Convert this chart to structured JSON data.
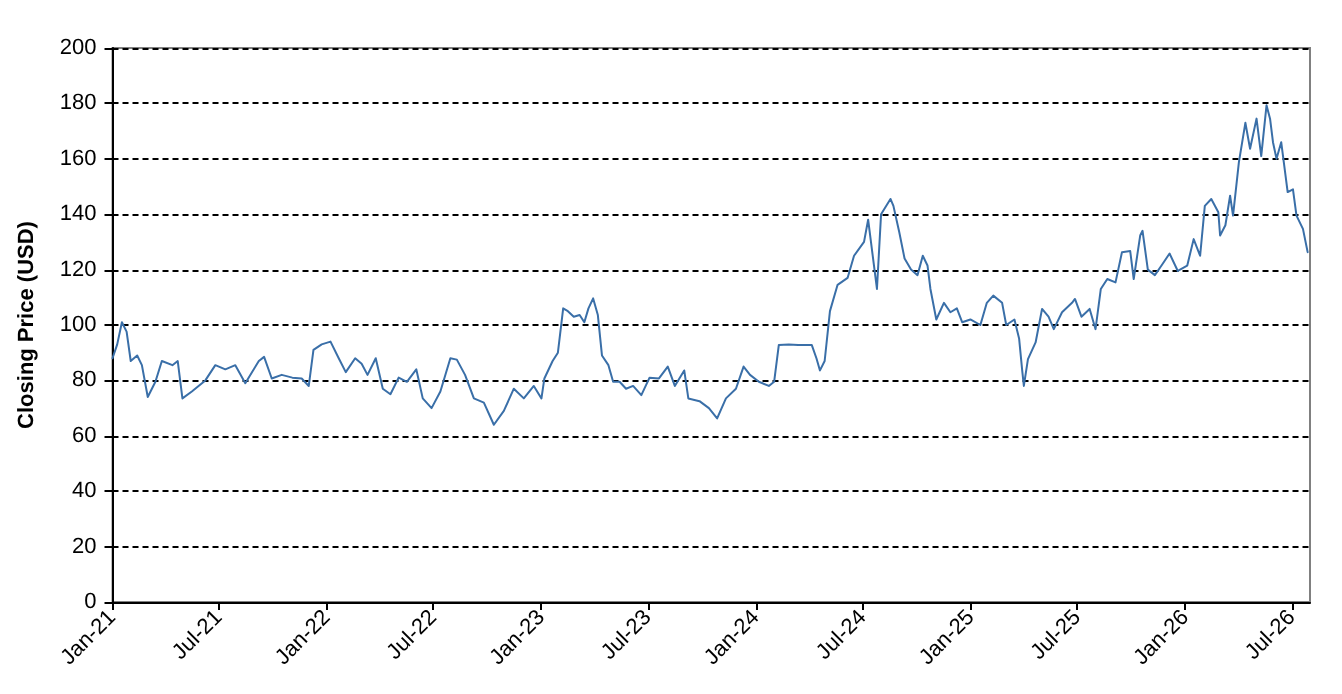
{
  "chart_data": {
    "type": "line",
    "ylabel": "Closing Price (USD)",
    "xlim": [
      "2021-01-01",
      "2026-08-01"
    ],
    "ylim": [
      0,
      200
    ],
    "xticks": [
      {
        "value": "2021-01",
        "label": "Jan-21"
      },
      {
        "value": "2021-07",
        "label": "Jul-21"
      },
      {
        "value": "2022-01",
        "label": "Jan-22"
      },
      {
        "value": "2022-07",
        "label": "Jul-22"
      },
      {
        "value": "2023-01",
        "label": "Jan-23"
      },
      {
        "value": "2023-07",
        "label": "Jul-23"
      },
      {
        "value": "2024-01",
        "label": "Jan-24"
      },
      {
        "value": "2024-07",
        "label": "Jul-24"
      },
      {
        "value": "2025-01",
        "label": "Jan-25"
      },
      {
        "value": "2025-07",
        "label": "Jul-25"
      },
      {
        "value": "2026-01",
        "label": "Jan-26"
      },
      {
        "value": "2026-07",
        "label": "Jul-26"
      }
    ],
    "yticks": [
      0,
      20,
      40,
      60,
      80,
      100,
      120,
      140,
      160,
      180,
      200
    ],
    "grid": "y",
    "marker": "none",
    "line_style": "solid",
    "series": [
      {
        "color": "#3a6fa8",
        "x": [
          "2021-01-01",
          "2021-01-09",
          "2021-01-17",
          "2021-01-25",
          "2021-02-01",
          "2021-02-12",
          "2021-02-20",
          "2021-03-02",
          "2021-03-15",
          "2021-03-26",
          "2021-04-13",
          "2021-04-22",
          "2021-04-30",
          "2021-05-16",
          "2021-06-08",
          "2021-06-25",
          "2021-07-12",
          "2021-07-29",
          "2021-08-15",
          "2021-09-07",
          "2021-09-16",
          "2021-09-29",
          "2021-10-16",
          "2021-11-03",
          "2021-11-19",
          "2021-12-01",
          "2021-12-09",
          "2021-12-23",
          "2022-01-07",
          "2022-01-21",
          "2022-02-02",
          "2022-02-18",
          "2022-03-01",
          "2022-03-11",
          "2022-03-25",
          "2022-04-06",
          "2022-04-19",
          "2022-05-03",
          "2022-05-17",
          "2022-06-02",
          "2022-06-13",
          "2022-06-28",
          "2022-07-13",
          "2022-07-30",
          "2022-08-10",
          "2022-08-24",
          "2022-09-08",
          "2022-09-25",
          "2022-10-12",
          "2022-10-29",
          "2022-11-15",
          "2022-12-02",
          "2022-12-19",
          "2023-01-01",
          "2023-01-06",
          "2023-01-20",
          "2023-01-29",
          "2023-02-07",
          "2023-02-15",
          "2023-02-25",
          "2023-03-07",
          "2023-03-15",
          "2023-03-22",
          "2023-03-30",
          "2023-04-07",
          "2023-04-14",
          "2023-04-25",
          "2023-05-03",
          "2023-05-14",
          "2023-05-25",
          "2023-06-06",
          "2023-06-20",
          "2023-07-04",
          "2023-07-20",
          "2023-08-04",
          "2023-08-16",
          "2023-09-01",
          "2023-09-08",
          "2023-09-27",
          "2023-10-13",
          "2023-10-27",
          "2023-11-11",
          "2023-11-28",
          "2023-12-11",
          "2023-12-22",
          "2024-01-06",
          "2024-01-23",
          "2024-02-01",
          "2024-02-09",
          "2024-02-26",
          "2024-03-13",
          "2024-04-05",
          "2024-04-13",
          "2024-04-19",
          "2024-04-27",
          "2024-05-06",
          "2024-05-19",
          "2024-06-05",
          "2024-06-16",
          "2024-07-03",
          "2024-07-10",
          "2024-07-25",
          "2024-08-01",
          "2024-08-17",
          "2024-08-22",
          "2024-09-01",
          "2024-09-10",
          "2024-09-21",
          "2024-10-02",
          "2024-10-11",
          "2024-10-19",
          "2024-10-24",
          "2024-11-03",
          "2024-11-16",
          "2024-11-27",
          "2024-12-08",
          "2024-12-17",
          "2024-12-31",
          "2025-01-17",
          "2025-01-28",
          "2025-02-08",
          "2025-02-23",
          "2025-03-02",
          "2025-03-16",
          "2025-03-24",
          "2025-03-29",
          "2025-04-01",
          "2025-04-08",
          "2025-04-21",
          "2025-05-02",
          "2025-05-13",
          "2025-05-22",
          "2025-06-05",
          "2025-06-22",
          "2025-06-27",
          "2025-07-08",
          "2025-07-22",
          "2025-08-01",
          "2025-08-10",
          "2025-08-21",
          "2025-09-04",
          "2025-09-15",
          "2025-09-29",
          "2025-10-05",
          "2025-10-16",
          "2025-10-20",
          "2025-10-29",
          "2025-11-10",
          "2025-11-21",
          "2025-12-05",
          "2025-12-19",
          "2026-01-04",
          "2026-01-15",
          "2026-01-26",
          "2026-02-03",
          "2026-02-14",
          "2026-02-26",
          "2026-03-01",
          "2026-03-10",
          "2026-03-18",
          "2026-03-23",
          "2026-04-02",
          "2026-04-13",
          "2026-04-21",
          "2026-05-02",
          "2026-05-10",
          "2026-05-19",
          "2026-05-25",
          "2026-05-30",
          "2026-06-05",
          "2026-06-13",
          "2026-06-24",
          "2026-07-03",
          "2026-07-09",
          "2026-07-20",
          "2026-07-28"
        ],
        "values": [
          88,
          93,
          101,
          97.6,
          87,
          89,
          85.5,
          74,
          79.5,
          87,
          85.5,
          87,
          73.5,
          76,
          80,
          85.5,
          84,
          85.5,
          79,
          87,
          88.5,
          80.7,
          82,
          81,
          80.7,
          78,
          91,
          93,
          94,
          88,
          83,
          88,
          86,
          82,
          88,
          77,
          75,
          81,
          79.5,
          84,
          73.5,
          70,
          76,
          88,
          87.5,
          82,
          73.5,
          72,
          64,
          69,
          77,
          73.5,
          78,
          73.5,
          80.7,
          87,
          90,
          106,
          105,
          103,
          103.6,
          101,
          106,
          109.6,
          103.6,
          89,
          85.5,
          79.5,
          79.5,
          77,
          78,
          74.7,
          81,
          80.7,
          85,
          78,
          83.6,
          73.5,
          72.5,
          70,
          66.3,
          73.5,
          77,
          85,
          82,
          79.5,
          78,
          79.5,
          92.8,
          93,
          92.8,
          92.8,
          88,
          83.6,
          87,
          105,
          114.5,
          117,
          125,
          130,
          138,
          113,
          140,
          145.5,
          143,
          133.5,
          124,
          120,
          118,
          125,
          121.5,
          113,
          102,
          108,
          104.6,
          106,
          101,
          102,
          100,
          108,
          110.6,
          108,
          100,
          102,
          95,
          84,
          78,
          87.7,
          93.7,
          105.8,
          103,
          98.5,
          104.6,
          108,
          109.4,
          103,
          105.8,
          98.5,
          113,
          116.6,
          115.4,
          126.3,
          126.7,
          116.6,
          132.3,
          134,
          120,
          118,
          121.4,
          125.8,
          119.5,
          121.4,
          131,
          125,
          143,
          145.5,
          140.7,
          132.3,
          136,
          146.7,
          139.5,
          158.8,
          173,
          163.6,
          174.5,
          161,
          179.3,
          174.5,
          166,
          160,
          166,
          148,
          149,
          139.5,
          134.7,
          126.3
        ]
      }
    ]
  }
}
